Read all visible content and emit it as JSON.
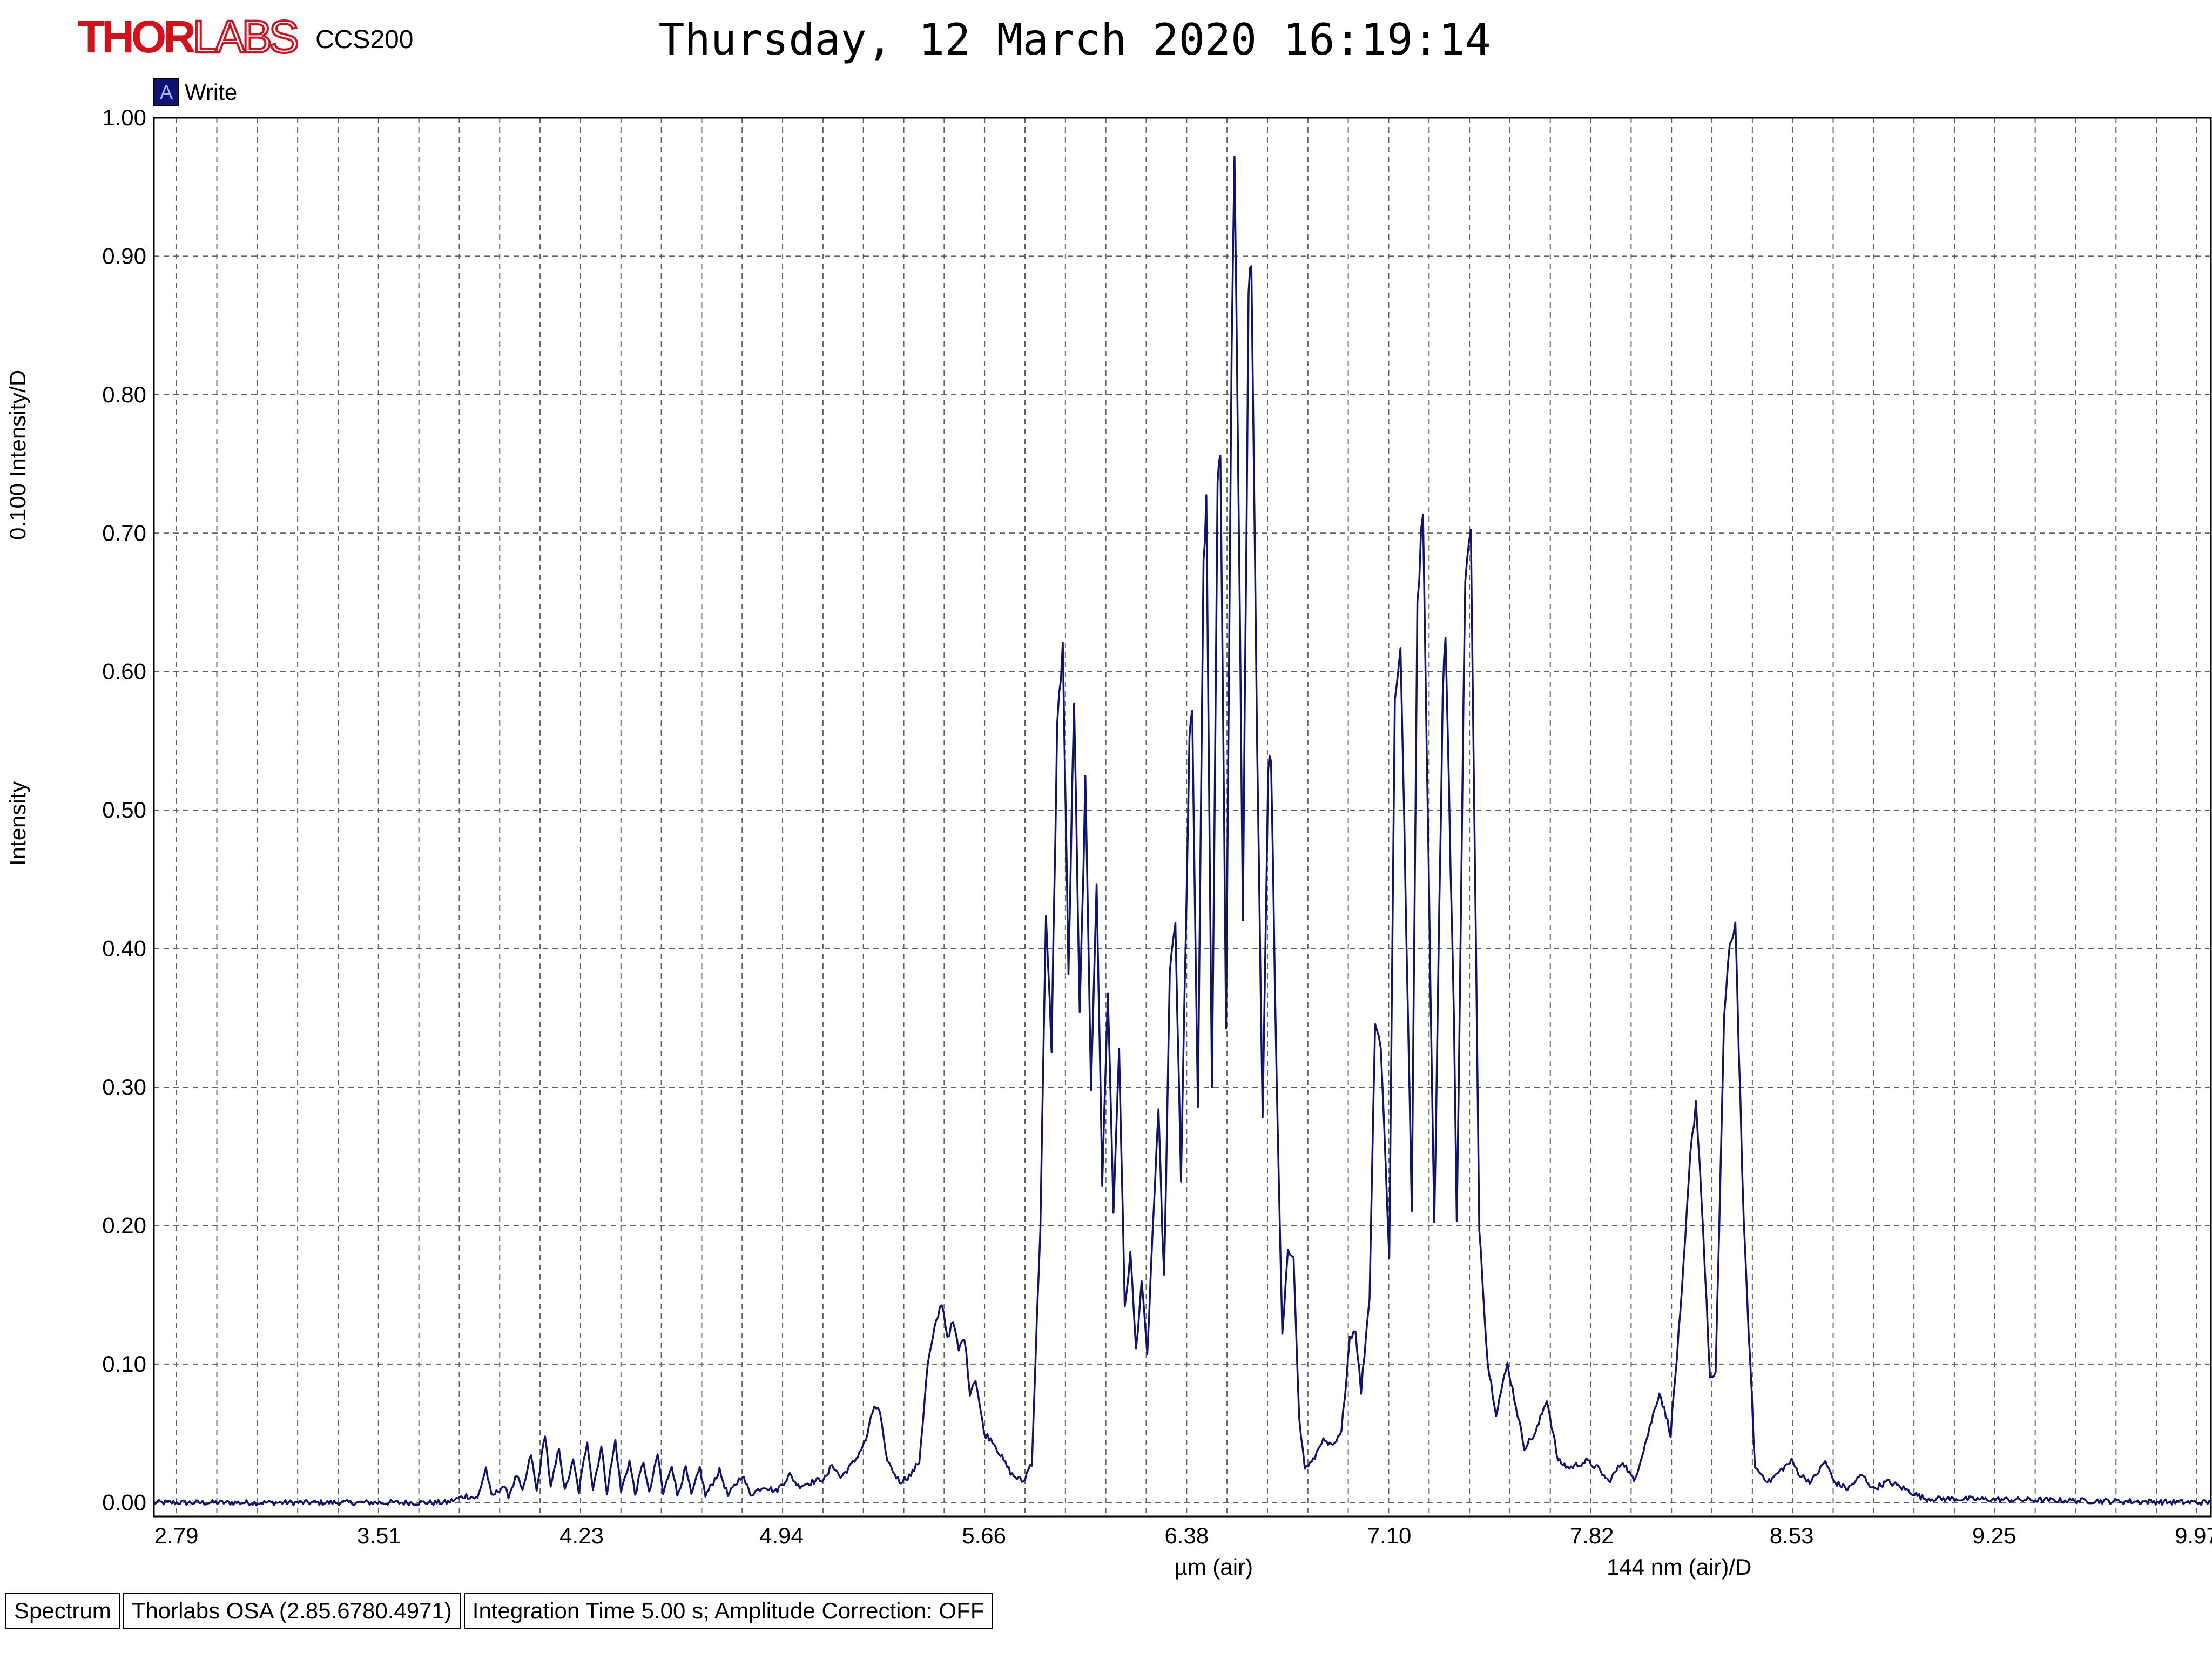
{
  "header": {
    "logo_primary": "THOR",
    "logo_secondary": "LABS",
    "model": "CCS200",
    "timestamp": "Thursday, 12 March 2020 16:19:14"
  },
  "legend": {
    "marker": "A",
    "label": "Write",
    "color": "#121270"
  },
  "status_bar": [
    "Spectrum",
    "Thorlabs OSA (2.85.6780.4971)",
    "Integration Time 5.00 s; Amplitude Correction: OFF"
  ],
  "chart_data": {
    "type": "line",
    "title": "Thursday, 12 March 2020 16:19:14",
    "xlabel": "µm (air)",
    "xscale_label": "144 nm (air)/D",
    "ylabel": "Intensity",
    "yscale_label": "0.100 Intensity/D",
    "xlim": [
      2.71,
      10.02
    ],
    "ylim": [
      -0.01,
      1.0
    ],
    "grid": true,
    "x_ticks": [
      "2.79",
      "3.51",
      "4.23",
      "4.94",
      "5.66",
      "6.38",
      "7.10",
      "7.82",
      "8.53",
      "9.25",
      "9.97"
    ],
    "y_ticks": [
      "0.00",
      "0.10",
      "0.20",
      "0.30",
      "0.40",
      "0.50",
      "0.60",
      "0.70",
      "0.80",
      "0.90",
      "1.00"
    ],
    "series": [
      {
        "name": "Write",
        "color": "#121270",
        "points": [
          [
            2.71,
            0.0
          ],
          [
            3.5,
            0.0
          ],
          [
            3.75,
            0.0
          ],
          [
            3.82,
            0.005
          ],
          [
            3.86,
            0.003
          ],
          [
            3.89,
            0.025
          ],
          [
            3.91,
            0.004
          ],
          [
            3.95,
            0.012
          ],
          [
            3.97,
            0.005
          ],
          [
            4.0,
            0.02
          ],
          [
            4.02,
            0.007
          ],
          [
            4.05,
            0.035
          ],
          [
            4.07,
            0.008
          ],
          [
            4.1,
            0.05
          ],
          [
            4.12,
            0.01
          ],
          [
            4.15,
            0.04
          ],
          [
            4.17,
            0.008
          ],
          [
            4.2,
            0.03
          ],
          [
            4.22,
            0.008
          ],
          [
            4.25,
            0.045
          ],
          [
            4.27,
            0.01
          ],
          [
            4.3,
            0.04
          ],
          [
            4.32,
            0.008
          ],
          [
            4.35,
            0.045
          ],
          [
            4.37,
            0.008
          ],
          [
            4.4,
            0.03
          ],
          [
            4.42,
            0.006
          ],
          [
            4.45,
            0.03
          ],
          [
            4.47,
            0.006
          ],
          [
            4.5,
            0.035
          ],
          [
            4.52,
            0.006
          ],
          [
            4.55,
            0.028
          ],
          [
            4.57,
            0.005
          ],
          [
            4.6,
            0.025
          ],
          [
            4.62,
            0.005
          ],
          [
            4.65,
            0.025
          ],
          [
            4.67,
            0.005
          ],
          [
            4.72,
            0.023
          ],
          [
            4.75,
            0.005
          ],
          [
            4.8,
            0.02
          ],
          [
            4.83,
            0.006
          ],
          [
            4.88,
            0.012
          ],
          [
            4.92,
            0.008
          ],
          [
            4.97,
            0.02
          ],
          [
            5.0,
            0.012
          ],
          [
            5.05,
            0.015
          ],
          [
            5.1,
            0.018
          ],
          [
            5.12,
            0.028
          ],
          [
            5.15,
            0.018
          ],
          [
            5.2,
            0.03
          ],
          [
            5.24,
            0.045
          ],
          [
            5.27,
            0.07
          ],
          [
            5.29,
            0.065
          ],
          [
            5.31,
            0.035
          ],
          [
            5.33,
            0.025
          ],
          [
            5.36,
            0.015
          ],
          [
            5.4,
            0.02
          ],
          [
            5.43,
            0.03
          ],
          [
            5.46,
            0.1
          ],
          [
            5.49,
            0.13
          ],
          [
            5.51,
            0.145
          ],
          [
            5.53,
            0.12
          ],
          [
            5.55,
            0.13
          ],
          [
            5.57,
            0.11
          ],
          [
            5.59,
            0.12
          ],
          [
            5.61,
            0.08
          ],
          [
            5.63,
            0.09
          ],
          [
            5.66,
            0.05
          ],
          [
            5.69,
            0.045
          ],
          [
            5.73,
            0.03
          ],
          [
            5.76,
            0.02
          ],
          [
            5.8,
            0.015
          ],
          [
            5.83,
            0.03
          ],
          [
            5.86,
            0.2
          ],
          [
            5.88,
            0.42
          ],
          [
            5.9,
            0.33
          ],
          [
            5.92,
            0.56
          ],
          [
            5.94,
            0.62
          ],
          [
            5.96,
            0.38
          ],
          [
            5.98,
            0.58
          ],
          [
            6.0,
            0.35
          ],
          [
            6.02,
            0.52
          ],
          [
            6.04,
            0.3
          ],
          [
            6.06,
            0.45
          ],
          [
            6.08,
            0.23
          ],
          [
            6.1,
            0.37
          ],
          [
            6.12,
            0.21
          ],
          [
            6.14,
            0.33
          ],
          [
            6.16,
            0.14
          ],
          [
            6.18,
            0.18
          ],
          [
            6.2,
            0.11
          ],
          [
            6.22,
            0.16
          ],
          [
            6.24,
            0.105
          ],
          [
            6.26,
            0.2
          ],
          [
            6.28,
            0.28
          ],
          [
            6.3,
            0.16
          ],
          [
            6.32,
            0.38
          ],
          [
            6.34,
            0.42
          ],
          [
            6.36,
            0.23
          ],
          [
            6.39,
            0.55
          ],
          [
            6.4,
            0.57
          ],
          [
            6.42,
            0.28
          ],
          [
            6.44,
            0.68
          ],
          [
            6.45,
            0.72
          ],
          [
            6.47,
            0.3
          ],
          [
            6.49,
            0.73
          ],
          [
            6.5,
            0.76
          ],
          [
            6.52,
            0.35
          ],
          [
            6.54,
            0.83
          ],
          [
            6.55,
            0.98
          ],
          [
            6.57,
            0.63
          ],
          [
            6.58,
            0.42
          ],
          [
            6.6,
            0.87
          ],
          [
            6.61,
            0.9
          ],
          [
            6.63,
            0.55
          ],
          [
            6.65,
            0.28
          ],
          [
            6.67,
            0.53
          ],
          [
            6.68,
            0.54
          ],
          [
            6.7,
            0.3
          ],
          [
            6.72,
            0.12
          ],
          [
            6.74,
            0.18
          ],
          [
            6.76,
            0.18
          ],
          [
            6.78,
            0.06
          ],
          [
            6.8,
            0.025
          ],
          [
            6.83,
            0.03
          ],
          [
            6.86,
            0.045
          ],
          [
            6.9,
            0.04
          ],
          [
            6.93,
            0.05
          ],
          [
            6.96,
            0.12
          ],
          [
            6.98,
            0.125
          ],
          [
            7.0,
            0.08
          ],
          [
            7.03,
            0.15
          ],
          [
            7.05,
            0.35
          ],
          [
            7.07,
            0.33
          ],
          [
            7.1,
            0.18
          ],
          [
            7.12,
            0.58
          ],
          [
            7.14,
            0.62
          ],
          [
            7.16,
            0.42
          ],
          [
            7.18,
            0.21
          ],
          [
            7.2,
            0.65
          ],
          [
            7.22,
            0.72
          ],
          [
            7.24,
            0.46
          ],
          [
            7.26,
            0.2
          ],
          [
            7.29,
            0.58
          ],
          [
            7.3,
            0.63
          ],
          [
            7.33,
            0.35
          ],
          [
            7.34,
            0.2
          ],
          [
            7.37,
            0.67
          ],
          [
            7.39,
            0.7
          ],
          [
            7.42,
            0.2
          ],
          [
            7.45,
            0.1
          ],
          [
            7.48,
            0.065
          ],
          [
            7.52,
            0.1
          ],
          [
            7.55,
            0.07
          ],
          [
            7.58,
            0.04
          ],
          [
            7.62,
            0.05
          ],
          [
            7.66,
            0.075
          ],
          [
            7.7,
            0.03
          ],
          [
            7.74,
            0.025
          ],
          [
            7.8,
            0.03
          ],
          [
            7.84,
            0.025
          ],
          [
            7.88,
            0.015
          ],
          [
            7.93,
            0.03
          ],
          [
            7.97,
            0.015
          ],
          [
            8.02,
            0.05
          ],
          [
            8.06,
            0.08
          ],
          [
            8.1,
            0.05
          ],
          [
            8.14,
            0.15
          ],
          [
            8.17,
            0.25
          ],
          [
            8.19,
            0.29
          ],
          [
            8.21,
            0.22
          ],
          [
            8.24,
            0.09
          ],
          [
            8.26,
            0.09
          ],
          [
            8.29,
            0.35
          ],
          [
            8.31,
            0.4
          ],
          [
            8.33,
            0.42
          ],
          [
            8.36,
            0.2
          ],
          [
            8.4,
            0.025
          ],
          [
            8.45,
            0.015
          ],
          [
            8.5,
            0.025
          ],
          [
            8.53,
            0.03
          ],
          [
            8.56,
            0.02
          ],
          [
            8.6,
            0.015
          ],
          [
            8.65,
            0.03
          ],
          [
            8.68,
            0.015
          ],
          [
            8.73,
            0.01
          ],
          [
            8.78,
            0.02
          ],
          [
            8.82,
            0.01
          ],
          [
            8.87,
            0.015
          ],
          [
            8.91,
            0.012
          ],
          [
            8.95,
            0.008
          ],
          [
            9.0,
            0.003
          ],
          [
            10.02,
            0.0
          ]
        ]
      }
    ]
  }
}
